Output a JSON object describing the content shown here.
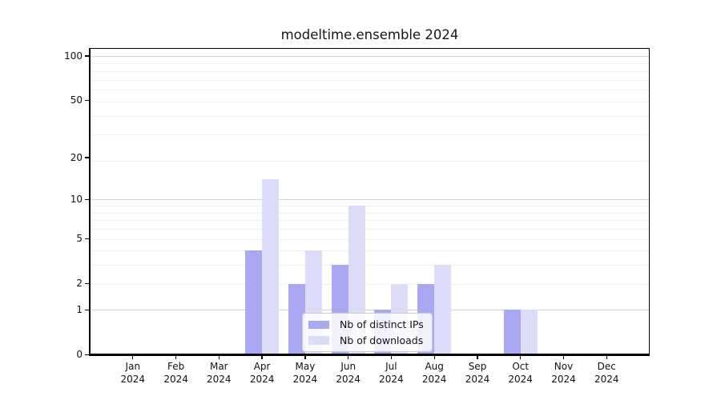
{
  "chart_data": {
    "type": "bar",
    "title": "modeltime.ensemble 2024",
    "categories": [
      "Jan 2024",
      "Feb 2024",
      "Mar 2024",
      "Apr 2024",
      "May 2024",
      "Jun 2024",
      "Jul 2024",
      "Aug 2024",
      "Sep 2024",
      "Oct 2024",
      "Nov 2024",
      "Dec 2024"
    ],
    "series": [
      {
        "name": "Nb of distinct IPs",
        "color": "#a9a9f3",
        "values": [
          0,
          0,
          0,
          4,
          2,
          3,
          1,
          2,
          0,
          1,
          0,
          0
        ]
      },
      {
        "name": "Nb of downloads",
        "color": "#dcdcf8",
        "values": [
          0,
          0,
          0,
          14,
          4,
          9,
          2,
          3,
          0,
          1,
          0,
          0
        ]
      }
    ],
    "yscale": "log1p",
    "ylim": [
      0,
      113
    ],
    "y_tick_values": [
      0,
      1,
      2,
      5,
      10,
      20,
      50,
      100
    ],
    "y_tick_labels": [
      "0",
      "1",
      "2",
      "5",
      "10",
      "20",
      "50",
      "100"
    ],
    "grid": {
      "on": true,
      "major_values": [
        1,
        10,
        100
      ],
      "minor_values": [
        2,
        3,
        4,
        5,
        6,
        7,
        8,
        9,
        19,
        29,
        39,
        49,
        59,
        69,
        79,
        89
      ],
      "major_color": "#cfcfcf",
      "minor_color": "#efefef"
    },
    "legend": {
      "position": "lower-center-inside",
      "entries": [
        "Nb of distinct IPs",
        "Nb of downloads"
      ]
    },
    "axis_color": "#000000",
    "xlabel": "",
    "ylabel": ""
  }
}
